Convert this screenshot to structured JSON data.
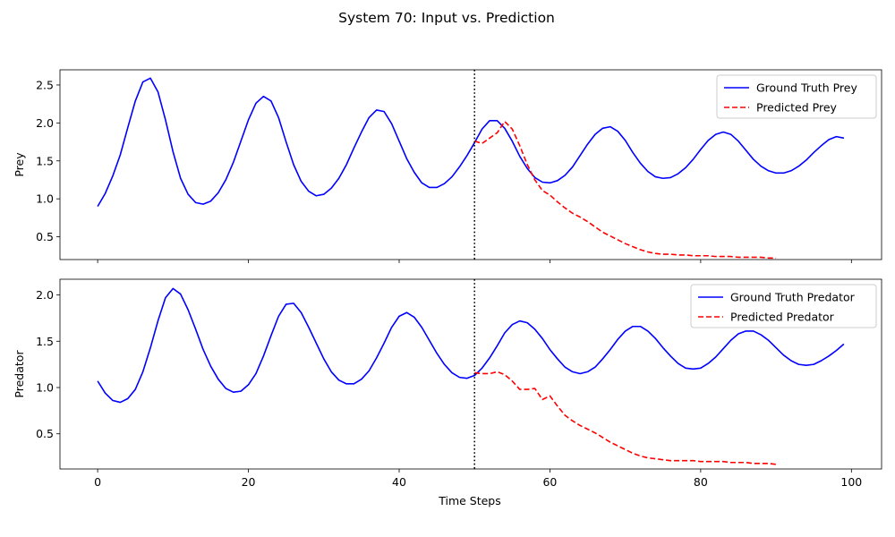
{
  "chart_data": {
    "type": "line",
    "title": "System 70: Input vs. Prediction",
    "xlabel": "Time Steps",
    "xlim": [
      -5,
      104
    ],
    "x_ticks": [
      0,
      20,
      40,
      60,
      80,
      100
    ],
    "divider_x": 50,
    "legend_position": "upper right",
    "grid": false,
    "colors": {
      "truth": "#0000ff",
      "pred": "#ff0000"
    },
    "panels": [
      {
        "ylabel": "Prey",
        "ylim": [
          0.2,
          2.7
        ],
        "y_ticks": [
          0.5,
          1.0,
          1.5,
          2.0,
          2.5
        ],
        "y_tick_labels": [
          "0.5",
          "1.0",
          "1.5",
          "2.0",
          "2.5"
        ],
        "series": [
          {
            "name": "Ground Truth Prey",
            "style": "solid",
            "color": "#0000ff",
            "x_start": 0,
            "values": [
              0.9,
              1.07,
              1.3,
              1.58,
              1.94,
              2.29,
              2.54,
              2.59,
              2.41,
              2.04,
              1.62,
              1.27,
              1.06,
              0.95,
              0.93,
              0.97,
              1.08,
              1.25,
              1.48,
              1.76,
              2.04,
              2.26,
              2.35,
              2.29,
              2.07,
              1.75,
              1.45,
              1.23,
              1.1,
              1.04,
              1.06,
              1.14,
              1.27,
              1.45,
              1.67,
              1.88,
              2.07,
              2.17,
              2.15,
              1.99,
              1.76,
              1.53,
              1.35,
              1.21,
              1.15,
              1.15,
              1.2,
              1.29,
              1.42,
              1.57,
              1.74,
              1.92,
              2.03,
              2.03,
              1.93,
              1.76,
              1.56,
              1.4,
              1.28,
              1.22,
              1.21,
              1.24,
              1.31,
              1.42,
              1.57,
              1.72,
              1.85,
              1.93,
              1.95,
              1.89,
              1.77,
              1.61,
              1.47,
              1.36,
              1.29,
              1.27,
              1.28,
              1.33,
              1.41,
              1.52,
              1.65,
              1.77,
              1.85,
              1.88,
              1.85,
              1.76,
              1.64,
              1.52,
              1.43,
              1.37,
              1.34,
              1.34,
              1.37,
              1.43,
              1.51,
              1.61,
              1.7,
              1.78,
              1.82,
              1.8
            ]
          },
          {
            "name": "Predicted Prey",
            "style": "dashed",
            "color": "#ff0000",
            "x_start": 50,
            "values": [
              1.76,
              1.73,
              1.8,
              1.87,
              2.02,
              1.92,
              1.7,
              1.45,
              1.25,
              1.11,
              1.05,
              0.96,
              0.88,
              0.81,
              0.76,
              0.7,
              0.63,
              0.56,
              0.51,
              0.46,
              0.41,
              0.37,
              0.33,
              0.3,
              0.28,
              0.27,
              0.27,
              0.26,
              0.26,
              0.25,
              0.25,
              0.25,
              0.24,
              0.24,
              0.24,
              0.23,
              0.23,
              0.23,
              0.23,
              0.22,
              0.22
            ]
          }
        ]
      },
      {
        "ylabel": "Predator",
        "ylim": [
          0.12,
          2.17
        ],
        "y_ticks": [
          0.5,
          1.0,
          1.5,
          2.0
        ],
        "y_tick_labels": [
          "0.5",
          "1.0",
          "1.5",
          "2.0"
        ],
        "series": [
          {
            "name": "Ground Truth Predator",
            "style": "solid",
            "color": "#0000ff",
            "x_start": 0,
            "values": [
              1.07,
              0.94,
              0.86,
              0.84,
              0.88,
              0.98,
              1.17,
              1.43,
              1.72,
              1.97,
              2.07,
              2.01,
              1.84,
              1.63,
              1.41,
              1.23,
              1.09,
              0.99,
              0.95,
              0.96,
              1.03,
              1.15,
              1.34,
              1.56,
              1.77,
              1.9,
              1.91,
              1.81,
              1.65,
              1.48,
              1.31,
              1.17,
              1.08,
              1.04,
              1.04,
              1.09,
              1.18,
              1.32,
              1.48,
              1.65,
              1.77,
              1.81,
              1.76,
              1.65,
              1.51,
              1.37,
              1.25,
              1.16,
              1.11,
              1.1,
              1.13,
              1.21,
              1.32,
              1.45,
              1.59,
              1.68,
              1.72,
              1.7,
              1.63,
              1.53,
              1.41,
              1.31,
              1.22,
              1.17,
              1.15,
              1.17,
              1.22,
              1.31,
              1.41,
              1.52,
              1.61,
              1.66,
              1.66,
              1.61,
              1.53,
              1.43,
              1.34,
              1.26,
              1.21,
              1.2,
              1.21,
              1.26,
              1.33,
              1.42,
              1.51,
              1.58,
              1.61,
              1.61,
              1.57,
              1.51,
              1.43,
              1.35,
              1.29,
              1.25,
              1.24,
              1.25,
              1.29,
              1.34,
              1.4,
              1.47
            ]
          },
          {
            "name": "Predicted Predator",
            "style": "dashed",
            "color": "#ff0000",
            "x_start": 50,
            "values": [
              1.16,
              1.15,
              1.15,
              1.17,
              1.14,
              1.07,
              0.98,
              0.98,
              0.99,
              0.87,
              0.91,
              0.8,
              0.7,
              0.64,
              0.59,
              0.55,
              0.51,
              0.46,
              0.41,
              0.37,
              0.33,
              0.29,
              0.26,
              0.24,
              0.23,
              0.22,
              0.21,
              0.21,
              0.21,
              0.21,
              0.2,
              0.2,
              0.2,
              0.2,
              0.19,
              0.19,
              0.19,
              0.18,
              0.18,
              0.18,
              0.17
            ]
          }
        ]
      }
    ]
  }
}
